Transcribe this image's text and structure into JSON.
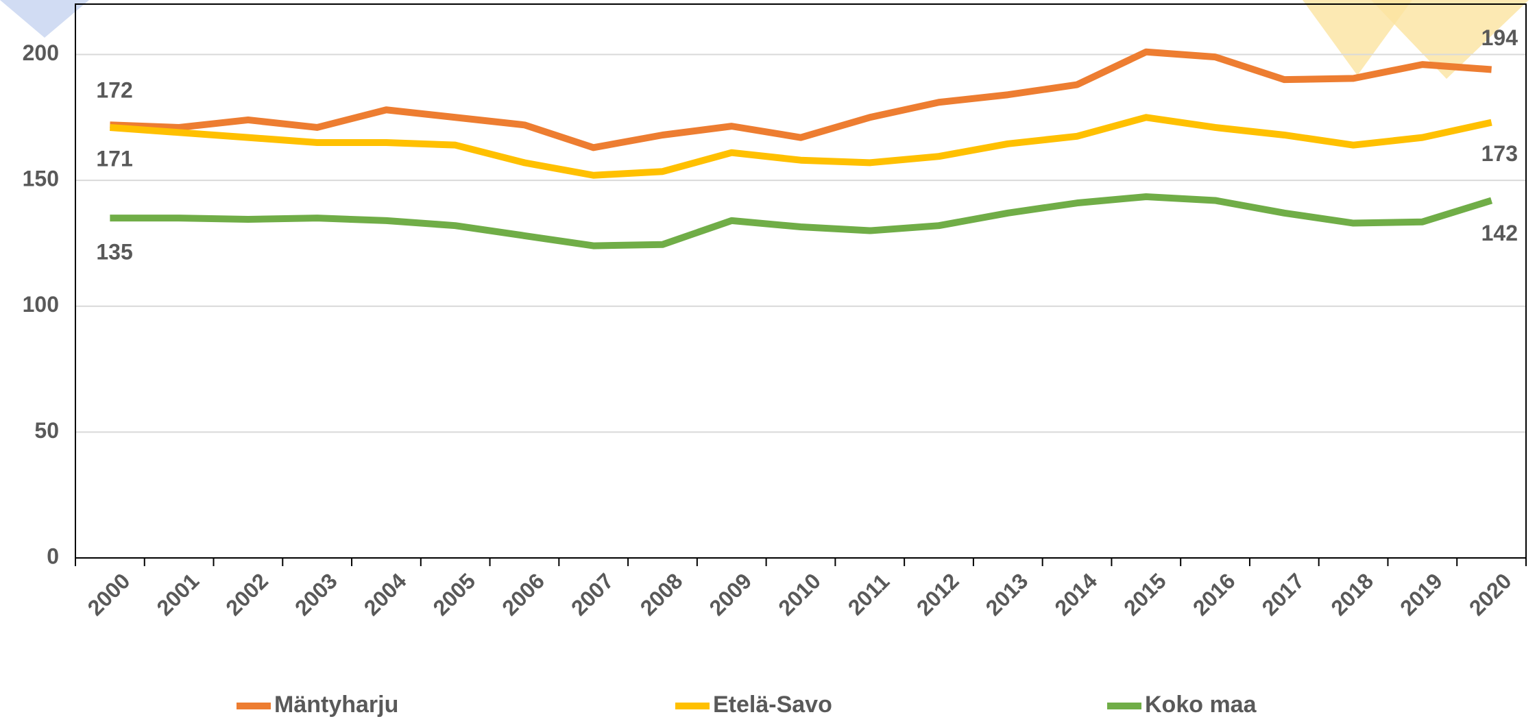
{
  "chart_data": {
    "type": "line",
    "categories": [
      "2000",
      "2001",
      "2002",
      "2003",
      "2004",
      "2005",
      "2006",
      "2007",
      "2008",
      "2009",
      "2010",
      "2011",
      "2012",
      "2013",
      "2014",
      "2015",
      "2016",
      "2017",
      "2018",
      "2019",
      "2020"
    ],
    "series": [
      {
        "name": "Mäntyharju",
        "color": "#ed7d31",
        "values": [
          172,
          171,
          174,
          171,
          178,
          175,
          172,
          163,
          168,
          171.5,
          167,
          175,
          181,
          184,
          188,
          201,
          199,
          190,
          190.5,
          196,
          194
        ]
      },
      {
        "name": "Etelä-Savo",
        "color": "#ffc000",
        "values": [
          171,
          169,
          167,
          165,
          165,
          164,
          157,
          152,
          153.5,
          161,
          158,
          157,
          159.5,
          164.5,
          167.5,
          175,
          171,
          168,
          164,
          167,
          173
        ]
      },
      {
        "name": "Koko maa",
        "color": "#70ad47",
        "values": [
          135,
          135,
          134.5,
          135,
          134,
          132,
          128,
          124,
          124.5,
          134,
          131.5,
          130,
          132,
          137,
          141,
          143.5,
          142,
          137,
          133,
          133.5,
          142
        ]
      }
    ],
    "ylim": [
      0,
      220
    ],
    "yticks": [
      0,
      50,
      100,
      150,
      200
    ],
    "grid": true
  }
}
